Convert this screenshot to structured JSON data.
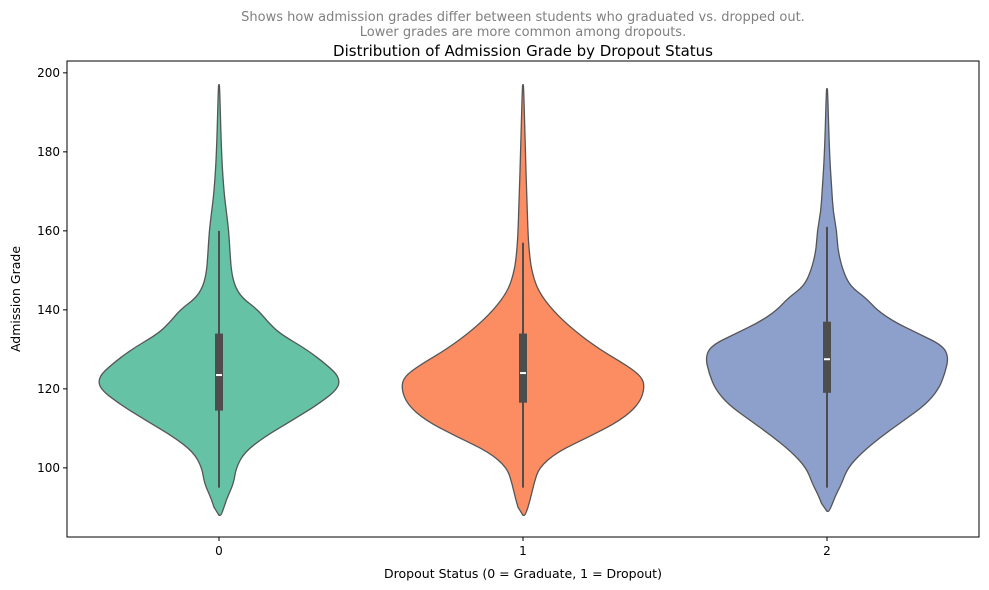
{
  "chart_data": {
    "type": "violin",
    "subtitle_lines": [
      "Shows how admission grades differ between students who graduated vs. dropped out.",
      "Lower grades are more common among dropouts."
    ],
    "title": "Distribution of Admission Grade by Dropout Status",
    "xlabel": "Dropout Status (0 = Graduate, 1 = Dropout)",
    "ylabel": "Admission Grade",
    "categories": [
      "0",
      "1",
      "2"
    ],
    "ylim": [
      82.5,
      203
    ],
    "yticks": [
      100,
      120,
      140,
      160,
      180,
      200
    ],
    "grid": false,
    "legend": "none",
    "colors": [
      "#66c2a5",
      "#fc8d62",
      "#8da0cb"
    ],
    "edge_color": "#555555",
    "violins": [
      {
        "category": "0",
        "min": 88,
        "max": 197,
        "whisker_low": 95,
        "whisker_high": 160,
        "q1": 114.5,
        "median": 123.5,
        "q3": 134,
        "density_profile": [
          [
            88,
            0.02
          ],
          [
            92,
            0.06
          ],
          [
            96,
            0.12
          ],
          [
            100,
            0.14
          ],
          [
            104,
            0.21
          ],
          [
            108,
            0.38
          ],
          [
            112,
            0.6
          ],
          [
            116,
            0.81
          ],
          [
            120,
            0.98
          ],
          [
            123,
            0.99
          ],
          [
            126,
            0.89
          ],
          [
            130,
            0.72
          ],
          [
            134,
            0.5
          ],
          [
            137,
            0.4
          ],
          [
            140,
            0.32
          ],
          [
            143,
            0.19
          ],
          [
            146,
            0.13
          ],
          [
            150,
            0.1
          ],
          [
            155,
            0.09
          ],
          [
            160,
            0.08
          ],
          [
            165,
            0.06
          ],
          [
            170,
            0.04
          ],
          [
            180,
            0.02
          ],
          [
            197,
            0.005
          ]
        ]
      },
      {
        "category": "1",
        "min": 88,
        "max": 197,
        "whisker_low": 95,
        "whisker_high": 157,
        "q1": 116.5,
        "median": 124,
        "q3": 134,
        "density_profile": [
          [
            88,
            0.02
          ],
          [
            92,
            0.06
          ],
          [
            96,
            0.09
          ],
          [
            100,
            0.13
          ],
          [
            104,
            0.28
          ],
          [
            108,
            0.55
          ],
          [
            112,
            0.8
          ],
          [
            116,
            0.95
          ],
          [
            120,
            1.0
          ],
          [
            123,
            0.98
          ],
          [
            126,
            0.85
          ],
          [
            130,
            0.63
          ],
          [
            135,
            0.41
          ],
          [
            140,
            0.24
          ],
          [
            145,
            0.12
          ],
          [
            150,
            0.07
          ],
          [
            155,
            0.05
          ],
          [
            160,
            0.04
          ],
          [
            170,
            0.03
          ],
          [
            180,
            0.02
          ],
          [
            197,
            0.005
          ]
        ]
      },
      {
        "category": "2",
        "min": 89,
        "max": 196,
        "whisker_low": 95,
        "whisker_high": 161,
        "q1": 119,
        "median": 127.5,
        "q3": 137,
        "density_profile": [
          [
            89,
            0.02
          ],
          [
            93,
            0.07
          ],
          [
            96,
            0.12
          ],
          [
            100,
            0.17
          ],
          [
            104,
            0.29
          ],
          [
            108,
            0.45
          ],
          [
            112,
            0.63
          ],
          [
            116,
            0.81
          ],
          [
            120,
            0.92
          ],
          [
            124,
            0.97
          ],
          [
            128,
            1.0
          ],
          [
            131,
            0.95
          ],
          [
            134,
            0.75
          ],
          [
            137,
            0.55
          ],
          [
            140,
            0.41
          ],
          [
            143,
            0.32
          ],
          [
            146,
            0.19
          ],
          [
            150,
            0.13
          ],
          [
            155,
            0.09
          ],
          [
            160,
            0.08
          ],
          [
            165,
            0.05
          ],
          [
            170,
            0.04
          ],
          [
            180,
            0.02
          ],
          [
            196,
            0.005
          ]
        ]
      }
    ]
  }
}
